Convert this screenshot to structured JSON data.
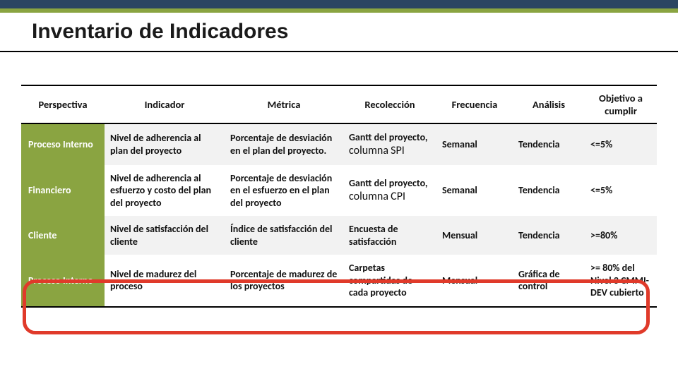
{
  "colors": {
    "topbar_dark": "#2b4562",
    "topbar_green": "#8aa441",
    "title_rule": "#000000",
    "band_bg": "#f2f2f2",
    "persp_bg": "#8aa441",
    "persp_fg": "#ffffff",
    "highlight_border": "#e03a2a"
  },
  "title": "Inventario de Indicadores",
  "table": {
    "columns": [
      "Perspectiva",
      "Indicador",
      "Métrica",
      "Recolección",
      "Frecuencia",
      "Análisis",
      "Objetivo a cumplir"
    ],
    "rows": [
      {
        "perspectiva": "Proceso Interno",
        "indicador": "Nivel de adherencia al plan del proyecto",
        "metrica": "Porcentaje de desviación en el plan del proyecto.",
        "recoleccion_a": "Gantt del proyecto,",
        "recoleccion_b": "columna",
        "recoleccion_tag": "SPI",
        "frecuencia": "Semanal",
        "analisis": "Tendencia",
        "objetivo": "<=5%",
        "band": true
      },
      {
        "perspectiva": "Financiero",
        "indicador": "Nivel de adherencia al esfuerzo y costo del plan del proyecto",
        "metrica": "Porcentaje de desviación en el esfuerzo en el plan del proyecto",
        "recoleccion_a": "Gantt del proyecto,",
        "recoleccion_b": "columna",
        "recoleccion_tag": "CPI",
        "frecuencia": "Semanal",
        "analisis": "Tendencia",
        "objetivo": "<=5%",
        "band": false
      },
      {
        "perspectiva": "Cliente",
        "indicador": "Nivel de satisfacción del cliente",
        "metrica": "Índice de satisfacción del cliente",
        "recoleccion_a": "Encuesta de satisfacción",
        "recoleccion_b": "",
        "recoleccion_tag": "",
        "frecuencia": "Mensual",
        "analisis": "Tendencia",
        "objetivo": ">=80%",
        "band": true
      },
      {
        "perspectiva": "Proceso Interno",
        "indicador": "Nivel de madurez del proceso",
        "metrica": "Porcentaje de madurez de los proyectos",
        "recoleccion_a": "Carpetas compartidas de cada proyecto",
        "recoleccion_b": "",
        "recoleccion_tag": "",
        "frecuencia": "Mensual",
        "analisis": "Gráfica de control",
        "objetivo": ">= 80% del Nivel 3 CMMI-DEV cubierto",
        "band": false
      }
    ]
  }
}
